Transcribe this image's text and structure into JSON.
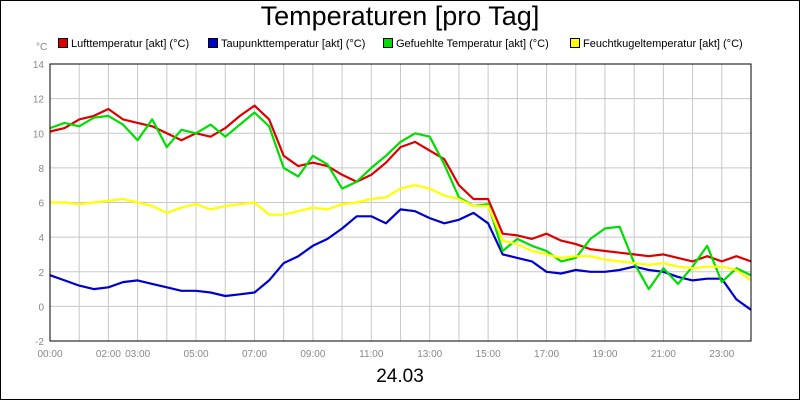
{
  "chart_data": {
    "type": "line",
    "title": "Temperaturen [pro Tag]",
    "date": "24.03",
    "y_unit": "°C",
    "ylim": [
      -2,
      14
    ],
    "y_ticks": [
      "-2",
      "0",
      "2",
      "4",
      "6",
      "8",
      "10",
      "12",
      "14"
    ],
    "xlim_hours": [
      0,
      24
    ],
    "x_ticks": [
      "00:00",
      "02:00",
      "03:00",
      "05:00",
      "07:00",
      "09:00",
      "11:00",
      "13:00",
      "15:00",
      "17:00",
      "19:00",
      "21:00",
      "23:00"
    ],
    "x_tick_hours": [
      0,
      2,
      3,
      5,
      7,
      9,
      11,
      13,
      15,
      17,
      19,
      21,
      23
    ],
    "grid": true,
    "legend_position": "top",
    "series": [
      {
        "name": "Lufttemperatur [akt] (°C)",
        "color": "#dd0000",
        "x": [
          0,
          0.5,
          1,
          1.5,
          2,
          2.5,
          3,
          3.5,
          4,
          4.5,
          5,
          5.5,
          6,
          6.5,
          7,
          7.5,
          8,
          8.5,
          9,
          9.5,
          10,
          10.5,
          11,
          11.5,
          12,
          12.5,
          13,
          13.5,
          14,
          14.5,
          15,
          15.5,
          16,
          16.5,
          17,
          17.5,
          18,
          18.5,
          19,
          19.5,
          20,
          20.5,
          21,
          21.5,
          22,
          22.5,
          23,
          23.5,
          24
        ],
        "y": [
          10.1,
          10.3,
          10.8,
          11.0,
          11.4,
          10.8,
          10.6,
          10.4,
          10.0,
          9.6,
          10.0,
          9.8,
          10.3,
          11.0,
          11.6,
          10.8,
          8.7,
          8.1,
          8.3,
          8.1,
          7.6,
          7.2,
          7.6,
          8.3,
          9.2,
          9.5,
          9.0,
          8.5,
          7.0,
          6.2,
          6.2,
          4.2,
          4.1,
          3.9,
          4.2,
          3.8,
          3.6,
          3.3,
          3.2,
          3.1,
          3.0,
          2.9,
          3.0,
          2.8,
          2.6,
          2.9,
          2.6,
          2.9,
          2.6
        ]
      },
      {
        "name": "Taupunkttemperatur [akt] (°C)",
        "color": "#0000cc",
        "x": [
          0,
          0.5,
          1,
          1.5,
          2,
          2.5,
          3,
          3.5,
          4,
          4.5,
          5,
          5.5,
          6,
          6.5,
          7,
          7.5,
          8,
          8.5,
          9,
          9.5,
          10,
          10.5,
          11,
          11.5,
          12,
          12.5,
          13,
          13.5,
          14,
          14.5,
          15,
          15.5,
          16,
          16.5,
          17,
          17.5,
          18,
          18.5,
          19,
          19.5,
          20,
          20.5,
          21,
          21.5,
          22,
          22.5,
          23,
          23.5,
          24
        ],
        "y": [
          1.8,
          1.5,
          1.2,
          1.0,
          1.1,
          1.4,
          1.5,
          1.3,
          1.1,
          0.9,
          0.9,
          0.8,
          0.6,
          0.7,
          0.8,
          1.5,
          2.5,
          2.9,
          3.5,
          3.9,
          4.5,
          5.2,
          5.2,
          4.8,
          5.6,
          5.5,
          5.1,
          4.8,
          5.0,
          5.4,
          4.8,
          3.0,
          2.8,
          2.6,
          2.0,
          1.9,
          2.1,
          2.0,
          2.0,
          2.1,
          2.3,
          2.1,
          2.0,
          1.7,
          1.5,
          1.6,
          1.6,
          0.4,
          -0.2
        ]
      },
      {
        "name": "Gefuehlte Temperatur [akt] (°C)",
        "color": "#00dd00",
        "x": [
          0,
          0.5,
          1,
          1.5,
          2,
          2.5,
          3,
          3.5,
          4,
          4.5,
          5,
          5.5,
          6,
          6.5,
          7,
          7.5,
          8,
          8.5,
          9,
          9.5,
          10,
          10.5,
          11,
          11.5,
          12,
          12.5,
          13,
          13.5,
          14,
          14.5,
          15,
          15.5,
          16,
          16.5,
          17,
          17.5,
          18,
          18.5,
          19,
          19.5,
          20,
          20.5,
          21,
          21.5,
          22,
          22.5,
          23,
          23.5,
          24
        ],
        "y": [
          10.3,
          10.6,
          10.4,
          10.9,
          11.0,
          10.5,
          9.6,
          10.8,
          9.2,
          10.2,
          10.0,
          10.5,
          9.8,
          10.5,
          11.2,
          10.4,
          8.0,
          7.5,
          8.7,
          8.2,
          6.8,
          7.2,
          8.0,
          8.7,
          9.5,
          10.0,
          9.8,
          8.2,
          6.3,
          5.8,
          5.9,
          3.2,
          3.9,
          3.5,
          3.2,
          2.6,
          2.8,
          3.9,
          4.5,
          4.6,
          2.5,
          1.0,
          2.2,
          1.3,
          2.3,
          3.5,
          1.4,
          2.2,
          1.8
        ]
      },
      {
        "name": "Feuchtkugeltemperatur [akt] (°C)",
        "color": "#ffff00",
        "x": [
          0,
          0.5,
          1,
          1.5,
          2,
          2.5,
          3,
          3.5,
          4,
          4.5,
          5,
          5.5,
          6,
          6.5,
          7,
          7.5,
          8,
          8.5,
          9,
          9.5,
          10,
          10.5,
          11,
          11.5,
          12,
          12.5,
          13,
          13.5,
          14,
          14.5,
          15,
          15.5,
          16,
          16.5,
          17,
          17.5,
          18,
          18.5,
          19,
          19.5,
          20,
          20.5,
          21,
          21.5,
          22,
          22.5,
          23,
          23.5,
          24
        ],
        "y": [
          6.0,
          6.0,
          5.9,
          6.0,
          6.1,
          6.2,
          6.0,
          5.8,
          5.4,
          5.7,
          5.9,
          5.6,
          5.8,
          5.9,
          6.0,
          5.3,
          5.3,
          5.5,
          5.7,
          5.6,
          5.9,
          6.0,
          6.2,
          6.3,
          6.8,
          7.0,
          6.8,
          6.4,
          6.2,
          5.8,
          5.8,
          3.8,
          3.6,
          3.2,
          3.0,
          2.8,
          2.9,
          2.9,
          2.7,
          2.6,
          2.5,
          2.4,
          2.5,
          2.3,
          2.2,
          2.3,
          2.3,
          2.1,
          1.5
        ]
      }
    ]
  }
}
